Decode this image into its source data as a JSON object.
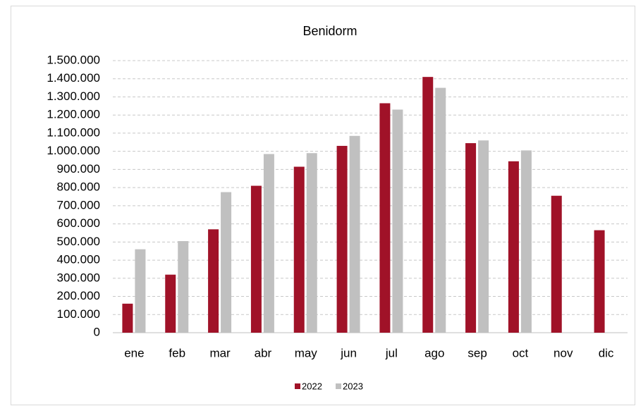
{
  "chart_data": {
    "type": "bar",
    "title": "Benidorm",
    "categories": [
      "ene",
      "feb",
      "mar",
      "abr",
      "may",
      "jun",
      "jul",
      "ago",
      "sep",
      "oct",
      "nov",
      "dic"
    ],
    "series": [
      {
        "name": "2022",
        "color": "#a01228",
        "values": [
          160000,
          320000,
          570000,
          810000,
          915000,
          1030000,
          1265000,
          1410000,
          1045000,
          945000,
          755000,
          565000
        ]
      },
      {
        "name": "2023",
        "color": "#c0c0c0",
        "values": [
          460000,
          505000,
          775000,
          985000,
          990000,
          1085000,
          1230000,
          1350000,
          1060000,
          1005000,
          null,
          null
        ]
      }
    ],
    "ylim": [
      0,
      1500000
    ],
    "yticks": [
      0,
      {
        "value": 100000,
        "label": "100.000"
      },
      {
        "value": 200000,
        "label": "200.000"
      },
      {
        "value": 300000,
        "label": "300.000"
      },
      {
        "value": 400000,
        "label": "400.000"
      },
      {
        "value": 500000,
        "label": "500.000"
      },
      {
        "value": 600000,
        "label": "600.000"
      },
      {
        "value": 700000,
        "label": "700.000"
      },
      {
        "value": 800000,
        "label": "800.000"
      },
      {
        "value": 900000,
        "label": "900.000"
      },
      {
        "value": 1000000,
        "label": "1.000.000"
      },
      {
        "value": 1100000,
        "label": "1.100.000"
      },
      {
        "value": 1200000,
        "label": "1.200.000"
      },
      {
        "value": 1300000,
        "label": "1.300.000"
      },
      {
        "value": 1400000,
        "label": "1.400.000"
      },
      {
        "value": 1500000,
        "label": "1.500.000"
      }
    ],
    "grid": true,
    "legend": "bottom"
  }
}
